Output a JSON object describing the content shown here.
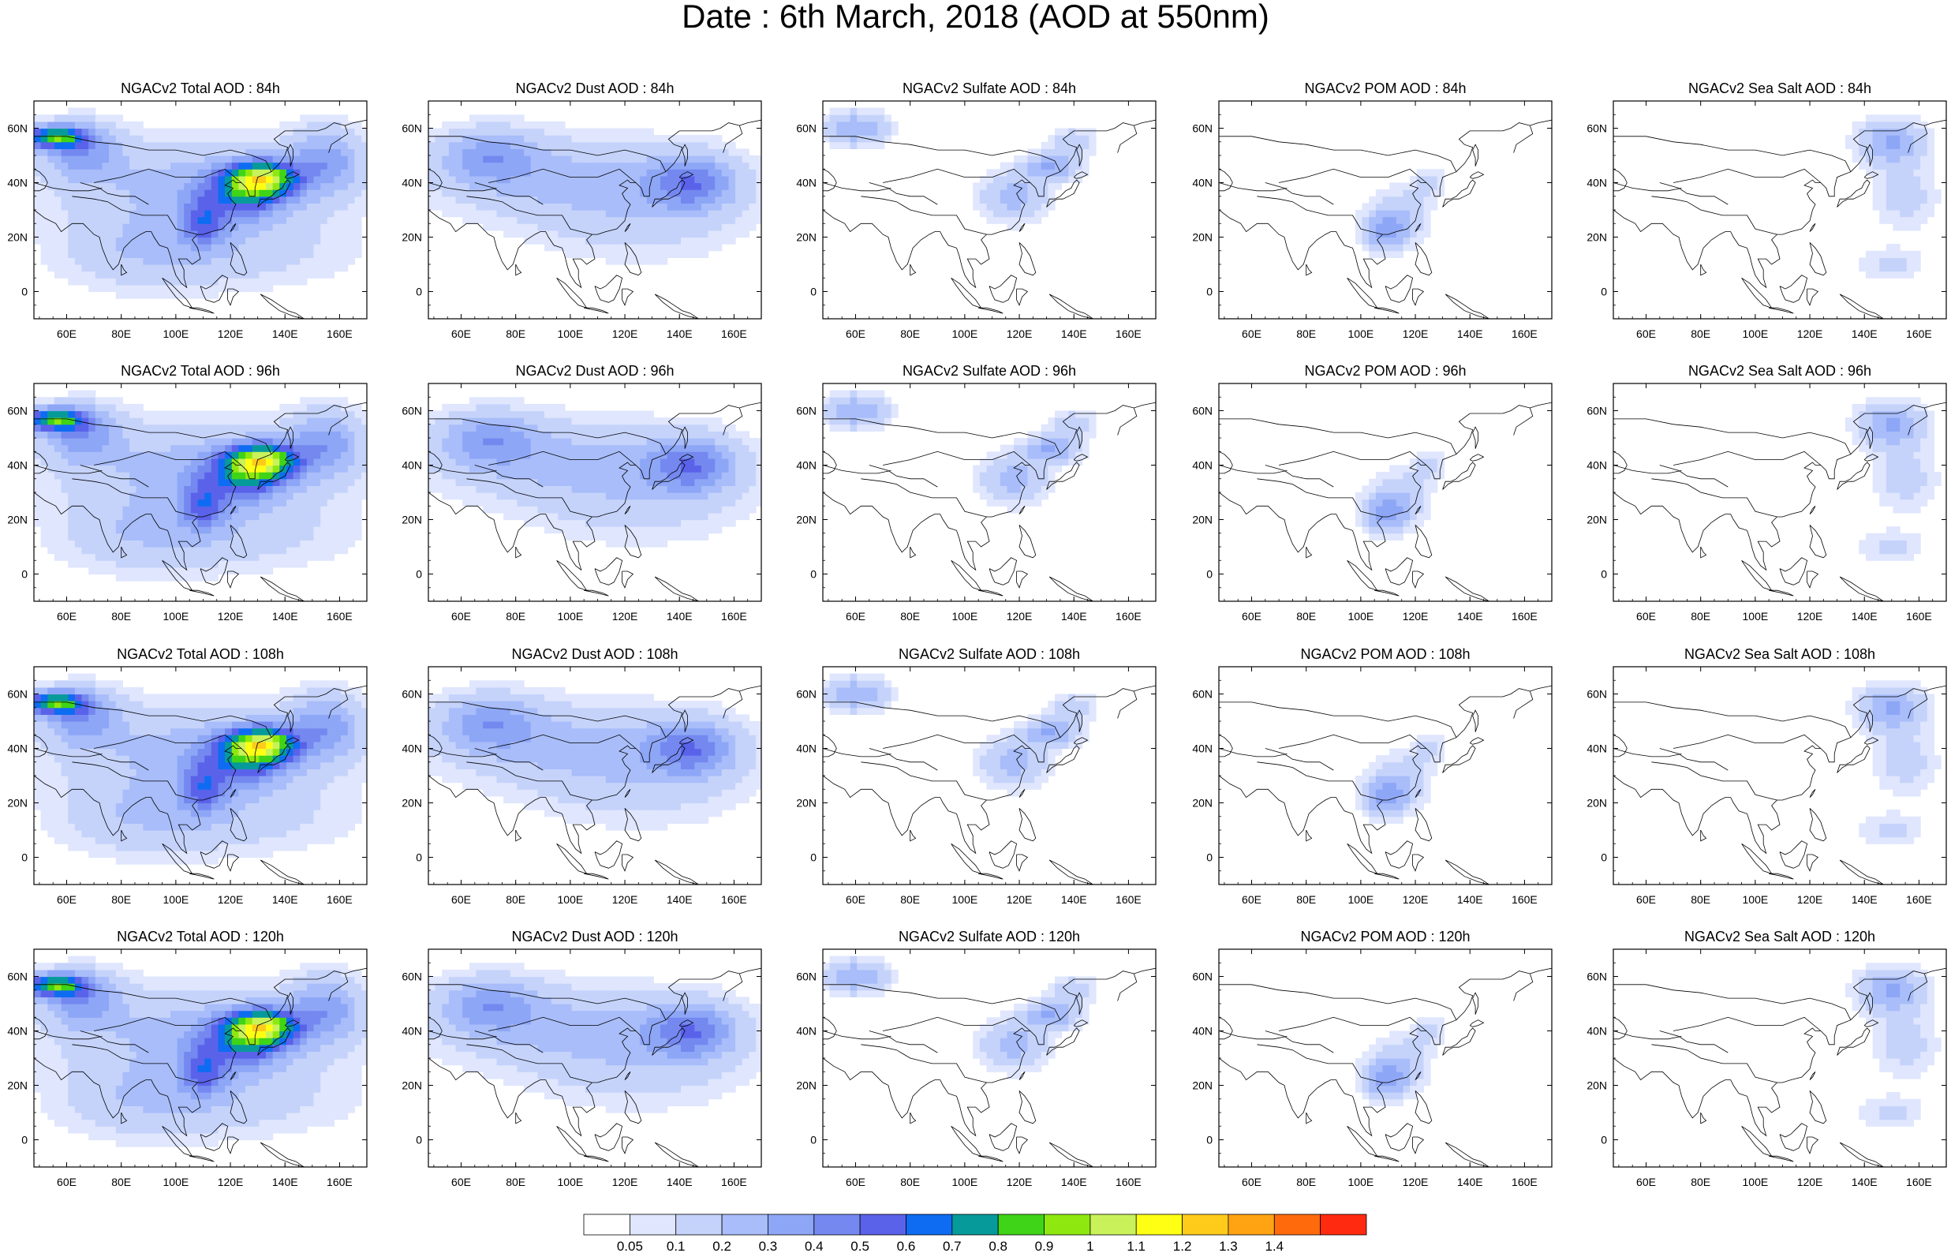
{
  "title": "Date : 6th March, 2018 (AOD at 550nm)",
  "map": {
    "lon_range": [
      48,
      170
    ],
    "lat_range": [
      -10,
      70
    ],
    "lon_ticks": [
      "60E",
      "80E",
      "100E",
      "120E",
      "140E",
      "160E"
    ],
    "lat_ticks": [
      "60N",
      "40N",
      "20N",
      "0"
    ],
    "coastline_color": "#000000"
  },
  "panels": [
    {
      "title": "NGACv2 Total AOD : 84h",
      "species": "total",
      "hour": "84h"
    },
    {
      "title": "NGACv2 Dust AOD : 84h",
      "species": "dust",
      "hour": "84h"
    },
    {
      "title": "NGACv2 Sulfate AOD : 84h",
      "species": "sulfate",
      "hour": "84h"
    },
    {
      "title": "NGACv2 POM AOD : 84h",
      "species": "pom",
      "hour": "84h"
    },
    {
      "title": "NGACv2 Sea Salt AOD : 84h",
      "species": "seasalt",
      "hour": "84h"
    },
    {
      "title": "NGACv2 Total AOD : 96h",
      "species": "total",
      "hour": "96h"
    },
    {
      "title": "NGACv2 Dust AOD : 96h",
      "species": "dust",
      "hour": "96h"
    },
    {
      "title": "NGACv2 Sulfate AOD : 96h",
      "species": "sulfate",
      "hour": "96h"
    },
    {
      "title": "NGACv2 POM AOD : 96h",
      "species": "pom",
      "hour": "96h"
    },
    {
      "title": "NGACv2 Sea Salt AOD : 96h",
      "species": "seasalt",
      "hour": "96h"
    },
    {
      "title": "NGACv2 Total AOD : 108h",
      "species": "total",
      "hour": "108h"
    },
    {
      "title": "NGACv2 Dust AOD : 108h",
      "species": "dust",
      "hour": "108h"
    },
    {
      "title": "NGACv2 Sulfate AOD : 108h",
      "species": "sulfate",
      "hour": "108h"
    },
    {
      "title": "NGACv2 POM AOD : 108h",
      "species": "pom",
      "hour": "108h"
    },
    {
      "title": "NGACv2 Sea Salt AOD : 108h",
      "species": "seasalt",
      "hour": "108h"
    },
    {
      "title": "NGACv2 Total AOD : 120h",
      "species": "total",
      "hour": "120h"
    },
    {
      "title": "NGACv2 Dust AOD : 120h",
      "species": "dust",
      "hour": "120h"
    },
    {
      "title": "NGACv2 Sulfate AOD : 120h",
      "species": "sulfate",
      "hour": "120h"
    },
    {
      "title": "NGACv2 POM AOD : 120h",
      "species": "pom",
      "hour": "120h"
    },
    {
      "title": "NGACv2 Sea Salt  AOD : 120h",
      "species": "seasalt",
      "hour": "120h"
    }
  ],
  "colorbar": {
    "labels": [
      "0.05",
      "0.1",
      "0.2",
      "0.3",
      "0.4",
      "0.5",
      "0.6",
      "0.7",
      "0.8",
      "0.9",
      "1",
      "1.1",
      "1.2",
      "1.3",
      "1.4"
    ],
    "colors": [
      "#ffffff",
      "#dfe6fd",
      "#c5d3fb",
      "#a8bdf9",
      "#8ea6f6",
      "#7488f0",
      "#5a62ea",
      "#0e6cf2",
      "#069a9a",
      "#3fd417",
      "#8ee80f",
      "#c9f25a",
      "#ffff14",
      "#ffcb1b",
      "#ffa313",
      "#ff6a0d",
      "#ff2a10"
    ]
  },
  "plumes": {
    "total": [
      {
        "lon": 105,
        "lat": 40,
        "rx": 50,
        "ry": 17,
        "v": 0.22
      },
      {
        "lon": 65,
        "lat": 52,
        "rx": 14,
        "ry": 10,
        "v": 0.32
      },
      {
        "lon": 55,
        "lat": 57,
        "rx": 12,
        "ry": 4,
        "v": 0.72
      },
      {
        "lon": 125,
        "lat": 36,
        "rx": 16,
        "ry": 9,
        "v": 0.48
      },
      {
        "lon": 132,
        "lat": 42,
        "rx": 12,
        "ry": 6,
        "v": 0.78
      },
      {
        "lon": 155,
        "lat": 48,
        "rx": 14,
        "ry": 12,
        "v": 0.32
      },
      {
        "lon": 110,
        "lat": 25,
        "rx": 8,
        "ry": 8,
        "v": 0.35
      },
      {
        "lon": 120,
        "lat": 15,
        "rx": 45,
        "ry": 14,
        "v": 0.14
      },
      {
        "lon": 85,
        "lat": 15,
        "rx": 30,
        "ry": 15,
        "v": 0.12
      }
    ],
    "dust": [
      {
        "lon": 100,
        "lat": 42,
        "rx": 52,
        "ry": 15,
        "v": 0.22
      },
      {
        "lon": 70,
        "lat": 50,
        "rx": 18,
        "ry": 10,
        "v": 0.28
      },
      {
        "lon": 145,
        "lat": 40,
        "rx": 16,
        "ry": 10,
        "v": 0.38
      },
      {
        "lon": 125,
        "lat": 25,
        "rx": 40,
        "ry": 15,
        "v": 0.12
      }
    ],
    "sulfate": [
      {
        "lon": 60,
        "lat": 60,
        "rx": 12,
        "ry": 6,
        "v": 0.3
      },
      {
        "lon": 118,
        "lat": 35,
        "rx": 12,
        "ry": 9,
        "v": 0.25
      },
      {
        "lon": 132,
        "lat": 46,
        "rx": 10,
        "ry": 5,
        "v": 0.3
      },
      {
        "lon": 140,
        "lat": 55,
        "rx": 8,
        "ry": 5,
        "v": 0.18
      }
    ],
    "pom": [
      {
        "lon": 108,
        "lat": 22,
        "rx": 8,
        "ry": 7,
        "v": 0.3
      },
      {
        "lon": 115,
        "lat": 28,
        "rx": 10,
        "ry": 10,
        "v": 0.18
      },
      {
        "lon": 125,
        "lat": 40,
        "rx": 6,
        "ry": 6,
        "v": 0.12
      }
    ],
    "seasalt": [
      {
        "lon": 150,
        "lat": 55,
        "rx": 12,
        "ry": 8,
        "v": 0.32
      },
      {
        "lon": 155,
        "lat": 35,
        "rx": 12,
        "ry": 12,
        "v": 0.14
      },
      {
        "lon": 150,
        "lat": 10,
        "rx": 12,
        "ry": 6,
        "v": 0.12
      }
    ]
  }
}
